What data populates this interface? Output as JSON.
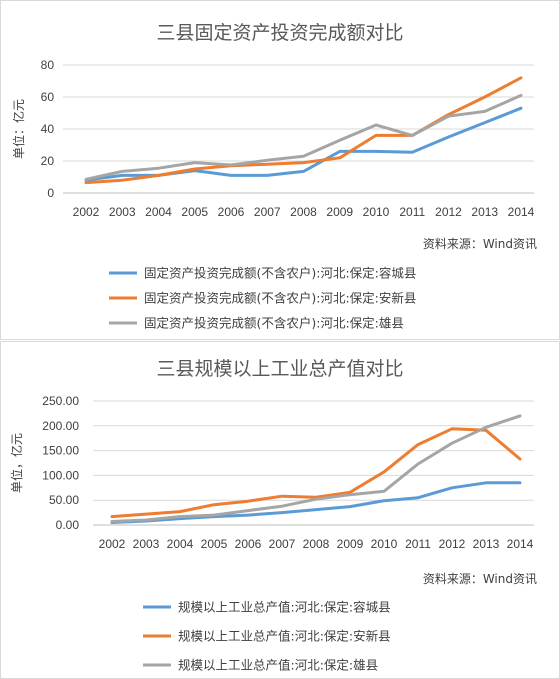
{
  "chart_data": [
    {
      "type": "line",
      "title": "三县固定资产投资完成额对比",
      "ylabel": "单位：亿元",
      "source": "资料来源：Wind资讯",
      "x": [
        "2002",
        "2003",
        "2004",
        "2005",
        "2006",
        "2007",
        "2008",
        "2009",
        "2010",
        "2011",
        "2012",
        "2013",
        "2014"
      ],
      "ylim": [
        0,
        80
      ],
      "yticks": [
        "0",
        "20",
        "40",
        "60",
        "80"
      ],
      "grid": true,
      "legend_position": "bottom",
      "series": [
        {
          "name": "固定资产投资完成额(不含农户):河北:保定:容城县",
          "color": "#5b9bd5",
          "values": [
            8,
            11,
            11,
            14,
            11,
            11,
            13.5,
            26,
            26,
            25.5,
            35,
            44,
            53
          ]
        },
        {
          "name": "固定资产投资完成额(不含农户):河北:保定:安新县",
          "color": "#ed7d31",
          "values": [
            6.5,
            8,
            11,
            15,
            17,
            18,
            19,
            22,
            36,
            36,
            49,
            60,
            72
          ]
        },
        {
          "name": "固定资产投资完成额(不含农户):河北:保定:雄县",
          "color": "#a5a5a5",
          "values": [
            8.5,
            13.5,
            15.5,
            19,
            17.5,
            20.5,
            23,
            33,
            42.5,
            36,
            48,
            51,
            61
          ]
        }
      ]
    },
    {
      "type": "line",
      "title": "三县规模以上工业总产值对比",
      "ylabel": "单位，亿元",
      "source": "资料来源：Wind资讯",
      "x": [
        "2002",
        "2003",
        "2004",
        "2005",
        "2006",
        "2007",
        "2008",
        "2009",
        "2010",
        "2011",
        "2012",
        "2013",
        "2014"
      ],
      "ylim": [
        0,
        250
      ],
      "yticks": [
        "0.00",
        "50.00",
        "100.00",
        "150.00",
        "200.00",
        "250.00"
      ],
      "grid": true,
      "legend_position": "bottom",
      "series": [
        {
          "name": "规模以上工业总产值:河北:保定:容城县",
          "color": "#5b9bd5",
          "values": [
            5,
            8,
            13,
            17,
            20,
            25,
            31,
            37,
            49,
            55,
            75,
            85,
            85
          ]
        },
        {
          "name": "规模以上工业总产值:河北:保定:安新县",
          "color": "#ed7d31",
          "values": [
            17,
            22,
            27,
            41,
            48,
            58,
            56,
            66,
            107,
            162,
            194,
            191,
            133
          ]
        },
        {
          "name": "规模以上工业总产值:河北:保定:雄县",
          "color": "#a5a5a5",
          "values": [
            7,
            10,
            17,
            20,
            29,
            38,
            52,
            61,
            68,
            123,
            165,
            197,
            220
          ]
        }
      ]
    }
  ]
}
